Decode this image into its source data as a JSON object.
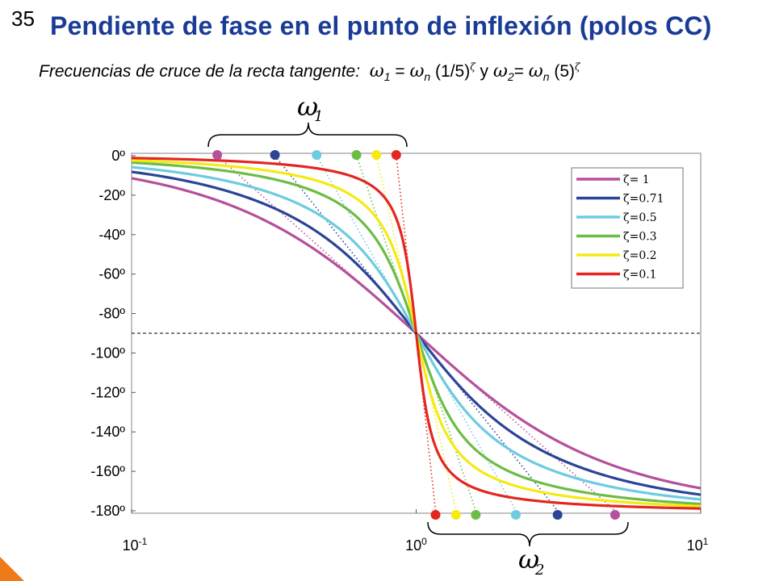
{
  "slide": {
    "number": "35",
    "title": "Pendiente de fase en el punto de inflexión (polos CC)",
    "subtitle": {
      "label": "Frecuencias de cruce de la recta tangente:",
      "w1_sub": "1",
      "w1_eq": " = ",
      "wn_sub": "n",
      "w1_factor": " (1/5)",
      "zeta": "ζ",
      "conj": "  y  ",
      "w2_sub": "2",
      "w2_eq": "= ",
      "w2_factor": " (5)"
    },
    "brace_top": {
      "omega": "ω",
      "sub": "1"
    },
    "brace_bottom": {
      "omega": "ω",
      "sub": "2"
    }
  },
  "chart_data": {
    "type": "line",
    "title": "",
    "xscale": "log",
    "xlim": [
      0.1,
      10
    ],
    "ylim": [
      -180,
      0
    ],
    "xticks": [
      {
        "value": 0.1,
        "base": "10",
        "exp": "-1"
      },
      {
        "value": 1,
        "base": "10",
        "exp": "0"
      },
      {
        "value": 10,
        "base": "10",
        "exp": "1"
      }
    ],
    "yticks": [
      {
        "value": 0,
        "label": "0º"
      },
      {
        "value": -20,
        "label": "-20º"
      },
      {
        "value": -40,
        "label": "-40º"
      },
      {
        "value": -60,
        "label": "-60º"
      },
      {
        "value": -80,
        "label": "-80º"
      },
      {
        "value": -100,
        "label": "-100º"
      },
      {
        "value": -120,
        "label": "-120º"
      },
      {
        "value": -140,
        "label": "-140º"
      },
      {
        "value": -160,
        "label": "-160º"
      },
      {
        "value": -180,
        "label": "-180º"
      }
    ],
    "reference_line": {
      "y": -90,
      "style": "dashed"
    },
    "legend": {
      "position": "top-right"
    },
    "series": [
      {
        "name": "ζ=  1",
        "zeta": 1,
        "color": "#b5509b",
        "w1": 0.2,
        "w2": 5
      },
      {
        "name": "ζ=0.71",
        "zeta": 0.71,
        "color": "#2b4496",
        "w1": 0.319,
        "w2": 3.14
      },
      {
        "name": "ζ=0.5",
        "zeta": 0.5,
        "color": "#6ecbe0",
        "w1": 0.447,
        "w2": 2.24
      },
      {
        "name": "ζ=0.3",
        "zeta": 0.3,
        "color": "#6cbd45",
        "w1": 0.617,
        "w2": 1.62
      },
      {
        "name": "ζ=0.2",
        "zeta": 0.2,
        "color": "#f5ea14",
        "w1": 0.725,
        "w2": 1.38
      },
      {
        "name": "ζ=0.1",
        "zeta": 0.1,
        "color": "#e42620",
        "w1": 0.851,
        "w2": 1.17
      }
    ]
  }
}
